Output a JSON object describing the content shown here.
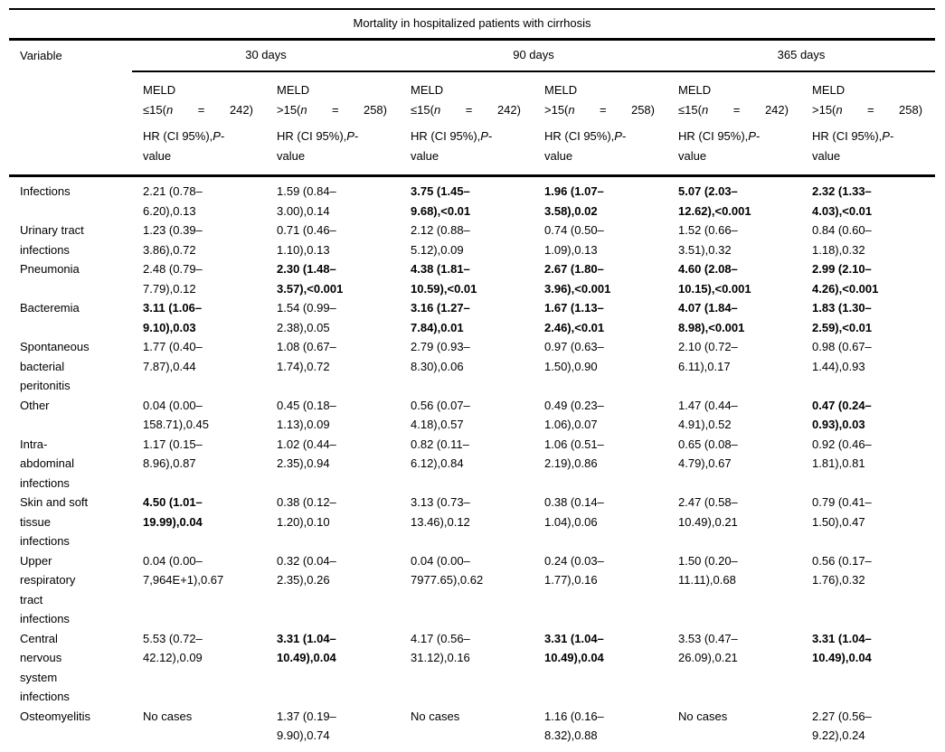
{
  "table": {
    "title": "Mortality in hospitalized patients with cirrhosis",
    "variable_header": "Variable",
    "groups": [
      {
        "label": "30 days"
      },
      {
        "label": "90 days"
      },
      {
        "label": "365 days"
      }
    ],
    "subcolumns": [
      {
        "meld_label": "MELD",
        "threshold": "≤15(",
        "n_symbol": "n",
        "equals": "=",
        "count": "242)",
        "stat_prefix": "HR (CI 95%),",
        "stat_p": "P",
        "stat_suffix": "-\nvalue"
      },
      {
        "meld_label": "MELD",
        "threshold": ">15(",
        "n_symbol": "n",
        "equals": "=",
        "count": "258)",
        "stat_prefix": "HR (CI 95%),",
        "stat_p": "P",
        "stat_suffix": "-\nvalue"
      },
      {
        "meld_label": "MELD",
        "threshold": "≤15(",
        "n_symbol": "n",
        "equals": "=",
        "count": "242)",
        "stat_prefix": "HR (CI 95%),",
        "stat_p": "P",
        "stat_suffix": "-\nvalue"
      },
      {
        "meld_label": "MELD",
        "threshold": ">15(",
        "n_symbol": "n",
        "equals": "=",
        "count": "258)",
        "stat_prefix": "HR (CI 95%),",
        "stat_p": "P",
        "stat_suffix": "-\nvalue"
      },
      {
        "meld_label": "MELD",
        "threshold": "≤15(",
        "n_symbol": "n",
        "equals": "=",
        "count": "242)",
        "stat_prefix": "HR (CI 95%),",
        "stat_p": "P",
        "stat_suffix": "-\nvalue"
      },
      {
        "meld_label": "MELD",
        "threshold": ">15(",
        "n_symbol": "n",
        "equals": "=",
        "count": "258)",
        "stat_prefix": "HR (CI 95%),",
        "stat_p": "P",
        "stat_suffix": "-\nvalue"
      }
    ],
    "rows": [
      {
        "variable": "Infections",
        "cells": [
          {
            "text": "2.21 (0.78–\n6.20),0.13",
            "bold": false
          },
          {
            "text": "1.59 (0.84–\n3.00),0.14",
            "bold": false
          },
          {
            "text": "3.75 (1.45–\n9.68),<0.01",
            "bold": true
          },
          {
            "text": "1.96 (1.07–\n3.58),0.02",
            "bold": true
          },
          {
            "text": "5.07 (2.03–\n12.62),<0.001",
            "bold": true
          },
          {
            "text": "2.32 (1.33–\n4.03),<0.01",
            "bold": true
          }
        ]
      },
      {
        "variable": "Urinary tract\ninfections",
        "cells": [
          {
            "text": "1.23 (0.39–\n3.86),0.72",
            "bold": false
          },
          {
            "text": "0.71 (0.46–\n1.10),0.13",
            "bold": false
          },
          {
            "text": "2.12 (0.88–\n5.12),0.09",
            "bold": false
          },
          {
            "text": "0.74 (0.50–\n1.09),0.13",
            "bold": false
          },
          {
            "text": "1.52 (0.66–\n3.51),0.32",
            "bold": false
          },
          {
            "text": "0.84 (0.60–\n1.18),0.32",
            "bold": false
          }
        ]
      },
      {
        "variable": "Pneumonia",
        "cells": [
          {
            "text": "2.48 (0.79–\n7.79),0.12",
            "bold": false
          },
          {
            "text": "2.30 (1.48–\n3.57),<0.001",
            "bold": true
          },
          {
            "text": "4.38 (1.81–\n10.59),<0.01",
            "bold": true
          },
          {
            "text": "2.67 (1.80–\n3.96),<0.001",
            "bold": true
          },
          {
            "text": "4.60 (2.08–\n10.15),<0.001",
            "bold": true
          },
          {
            "text": "2.99 (2.10–\n4.26),<0.001",
            "bold": true
          }
        ]
      },
      {
        "variable": "Bacteremia",
        "cells": [
          {
            "text": "3.11 (1.06–\n9.10),0.03",
            "bold": true
          },
          {
            "text": "1.54 (0.99–\n2.38),0.05",
            "bold": false
          },
          {
            "text": "3.16 (1.27–\n7.84),0.01",
            "bold": true
          },
          {
            "text": "1.67 (1.13–\n2.46),<0.01",
            "bold": true
          },
          {
            "text": "4.07 (1.84–\n8.98),<0.001",
            "bold": true
          },
          {
            "text": "1.83 (1.30–\n2.59),<0.01",
            "bold": true
          }
        ]
      },
      {
        "variable": "Spontaneous\nbacterial\nperitonitis",
        "cells": [
          {
            "text": "1.77 (0.40–\n7.87),0.44",
            "bold": false
          },
          {
            "text": "1.08 (0.67–\n1.74),0.72",
            "bold": false
          },
          {
            "text": "2.79 (0.93–\n8.30),0.06",
            "bold": false
          },
          {
            "text": "0.97 (0.63–\n1.50),0.90",
            "bold": false
          },
          {
            "text": "2.10 (0.72–\n6.11),0.17",
            "bold": false
          },
          {
            "text": "0.98 (0.67–\n1.44),0.93",
            "bold": false
          }
        ]
      },
      {
        "variable": "Other",
        "cells": [
          {
            "text": "0.04 (0.00–\n158.71),0.45",
            "bold": false
          },
          {
            "text": "0.45 (0.18–\n1.13),0.09",
            "bold": false
          },
          {
            "text": "0.56 (0.07–\n4.18),0.57",
            "bold": false
          },
          {
            "text": "0.49 (0.23–\n1.06),0.07",
            "bold": false
          },
          {
            "text": "1.47 (0.44–\n4.91),0.52",
            "bold": false
          },
          {
            "text": "0.47 (0.24–\n0.93),0.03",
            "bold": true
          }
        ]
      },
      {
        "variable": "Intra-\nabdominal\ninfections",
        "cells": [
          {
            "text": "1.17 (0.15–\n8.96),0.87",
            "bold": false
          },
          {
            "text": "1.02 (0.44–\n2.35),0.94",
            "bold": false
          },
          {
            "text": "0.82 (0.11–\n6.12),0.84",
            "bold": false
          },
          {
            "text": "1.06 (0.51–\n2.19),0.86",
            "bold": false
          },
          {
            "text": "0.65 (0.08–\n4.79),0.67",
            "bold": false
          },
          {
            "text": "0.92 (0.46–\n1.81),0.81",
            "bold": false
          }
        ]
      },
      {
        "variable": "Skin and soft\ntissue\ninfections",
        "cells": [
          {
            "text": "4.50 (1.01–\n19.99),0.04",
            "bold": true
          },
          {
            "text": "0.38 (0.12–\n1.20),0.10",
            "bold": false
          },
          {
            "text": "3.13 (0.73–\n13.46),0.12",
            "bold": false
          },
          {
            "text": "0.38 (0.14–\n1.04),0.06",
            "bold": false
          },
          {
            "text": "2.47 (0.58–\n10.49),0.21",
            "bold": false
          },
          {
            "text": "0.79 (0.41–\n1.50),0.47",
            "bold": false
          }
        ]
      },
      {
        "variable": "Upper\nrespiratory\ntract\ninfections",
        "cells": [
          {
            "text": "0.04 (0.00–\n7,964E+1),0.67",
            "bold": false
          },
          {
            "text": "0.32 (0.04–\n2.35),0.26",
            "bold": false
          },
          {
            "text": "0.04 (0.00–\n7977.65),0.62",
            "bold": false
          },
          {
            "text": "0.24 (0.03–\n1.77),0.16",
            "bold": false
          },
          {
            "text": "1.50 (0.20–\n11.11),0.68",
            "bold": false
          },
          {
            "text": "0.56 (0.17–\n1.76),0.32",
            "bold": false
          }
        ]
      },
      {
        "variable": "Central\nnervous\nsystem\ninfections",
        "cells": [
          {
            "text": "5.53 (0.72–\n42.12),0.09",
            "bold": false
          },
          {
            "text": "3.31 (1.04–\n10.49),0.04",
            "bold": true
          },
          {
            "text": "4.17 (0.56–\n31.12),0.16",
            "bold": false
          },
          {
            "text": "3.31 (1.04–\n10.49),0.04",
            "bold": true
          },
          {
            "text": "3.53 (0.47–\n26.09),0.21",
            "bold": false
          },
          {
            "text": "3.31 (1.04–\n10.49),0.04",
            "bold": true
          }
        ]
      },
      {
        "variable": "Osteomyelitis",
        "cells": [
          {
            "text": "No cases",
            "bold": false
          },
          {
            "text": "1.37 (0.19–\n9.90),0.74",
            "bold": false
          },
          {
            "text": "No cases",
            "bold": false
          },
          {
            "text": "1.16 (0.16–\n8.32),0.88",
            "bold": false
          },
          {
            "text": "No cases",
            "bold": false
          },
          {
            "text": "2.27 (0.56–\n9.22),0.24",
            "bold": false
          }
        ]
      }
    ]
  }
}
